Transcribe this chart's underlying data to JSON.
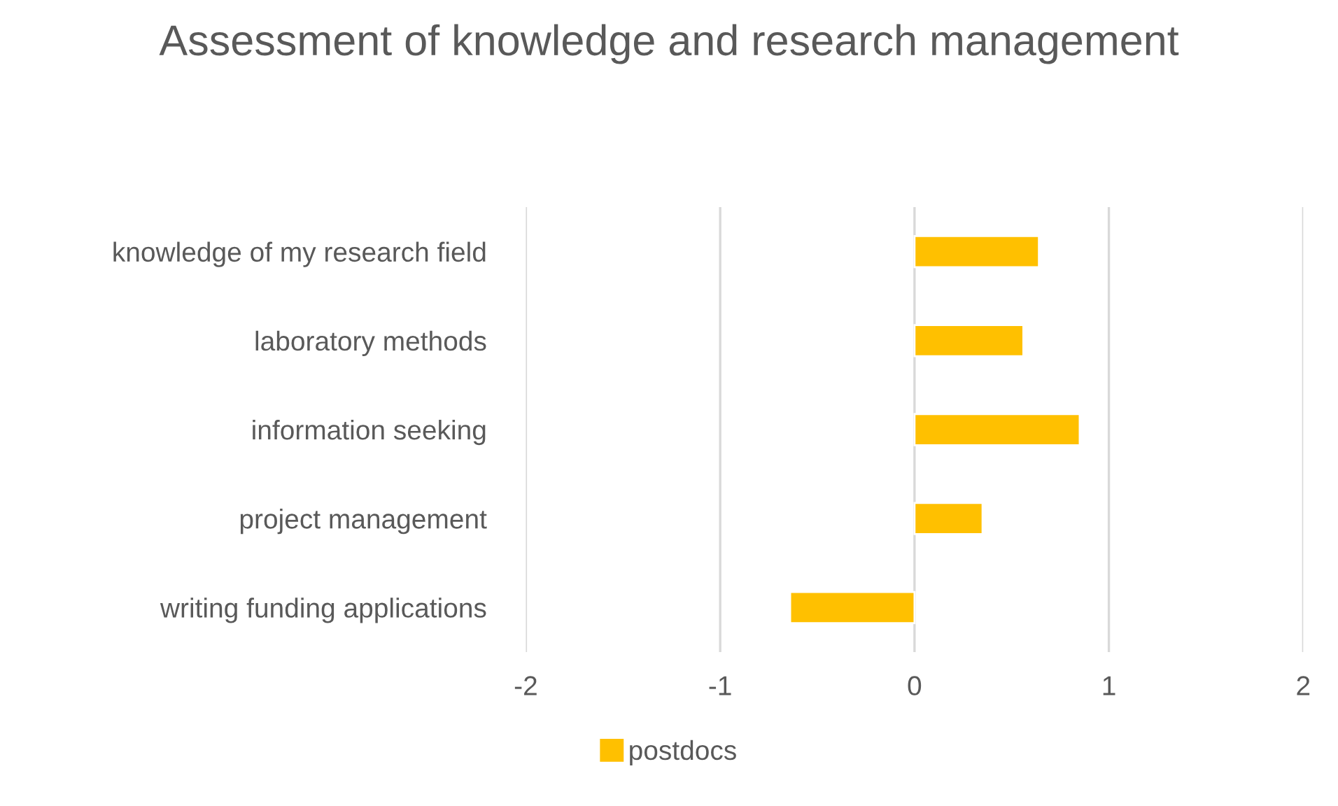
{
  "chart_data": {
    "type": "bar",
    "orientation": "horizontal",
    "title": "Assessment of knowledge and research management",
    "categories": [
      "knowledge of my research field",
      "laboratory methods",
      "information seeking",
      "project management",
      "writing funding applications"
    ],
    "series": [
      {
        "name": "postdocs",
        "color": "#ffc000",
        "values": [
          0.64,
          0.56,
          0.85,
          0.35,
          -0.64
        ]
      }
    ],
    "xlim": [
      -2,
      2
    ],
    "xticks": [
      -2,
      -1,
      0,
      1,
      2
    ],
    "grid": "x",
    "legend": "bottom"
  }
}
